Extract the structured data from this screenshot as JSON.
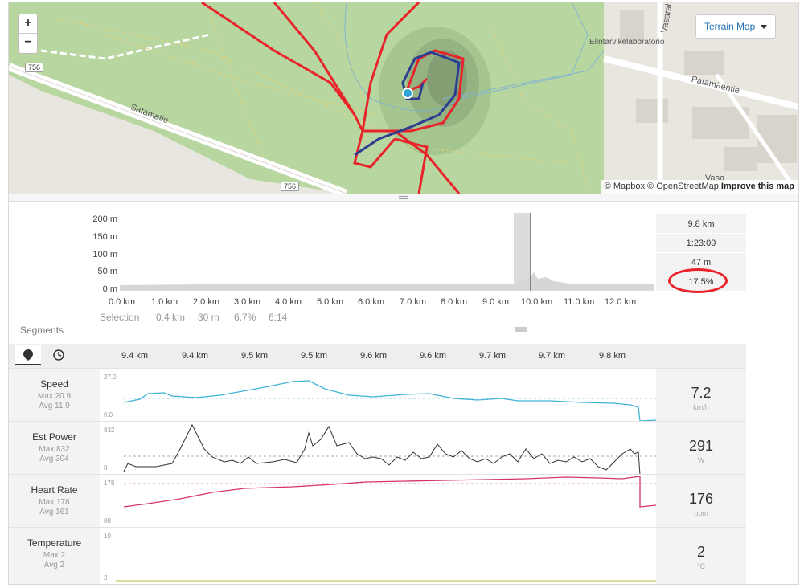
{
  "map": {
    "zoom_in": "+",
    "zoom_out": "−",
    "terrain_button": "Terrain Map",
    "attribution": {
      "mapbox": "© Mapbox",
      "osm": "© OpenStreetMap",
      "improve": "Improve this map"
    },
    "labels": {
      "satamatie": "Satamatie",
      "patamaentie": "Patamäentie",
      "vasara": "Vasaral",
      "vasara2": "Vasa",
      "elintarvike": "Elintarvikelaboratorio",
      "road_756_a": "756",
      "road_756_b": "756"
    }
  },
  "elevation": {
    "y_ticks": [
      "200 m",
      "150 m",
      "100 m",
      "50 m",
      "0 m"
    ],
    "x_ticks": [
      "0.0 km",
      "1.0 km",
      "2.0 km",
      "3.0 km",
      "4.0 km",
      "5.0 km",
      "6.0 km",
      "7.0 km",
      "8.0 km",
      "9.0 km",
      "10.0 km",
      "11.0 km",
      "12.0 km"
    ],
    "selection": {
      "label": "Selection",
      "distance": "0.4 km",
      "elev": "30 m",
      "grade": "6.7%",
      "time": "6:14"
    },
    "stats": {
      "distance": "9.8 km",
      "time": "1:23:09",
      "elevation": "47 m",
      "grade": "17.5%"
    }
  },
  "segments": {
    "label": "Segments",
    "tabs": {
      "distance_icon": "map-pin-icon",
      "time_icon": "clock-icon"
    },
    "dist_ticks": [
      "9.4 km",
      "9.4 km",
      "9.5 km",
      "9.5 km",
      "9.6 km",
      "9.6 km",
      "9.7 km",
      "9.7 km",
      "9.8 km"
    ]
  },
  "metrics": [
    {
      "name": "Speed",
      "max": "Max 20.9",
      "avg": "Avg 11.9",
      "top": "27.0",
      "bottom": "0.0",
      "value": "7.2",
      "unit": "km/h",
      "color": "#3fb2d6"
    },
    {
      "name": "Est Power",
      "max": "Max 832",
      "avg": "Avg 304",
      "top": "832",
      "bottom": "0",
      "value": "291",
      "unit": "W",
      "color": "#333333"
    },
    {
      "name": "Heart Rate",
      "max": "Max 178",
      "avg": "Avg 161",
      "top": "178",
      "bottom": "88",
      "value": "176",
      "unit": "bpm",
      "color": "#d6336c"
    },
    {
      "name": "Temperature",
      "max": "Max 2",
      "avg": "Avg 2",
      "top": "10",
      "bottom": "2",
      "value": "2",
      "unit": "°C",
      "color": "#c8c860"
    }
  ]
}
